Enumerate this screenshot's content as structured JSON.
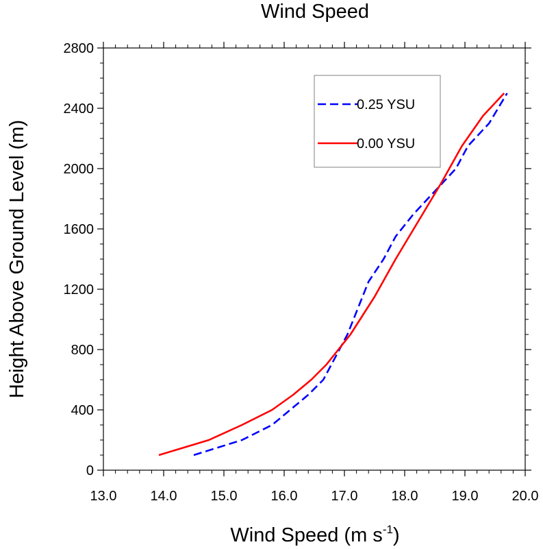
{
  "chart_data": {
    "type": "line",
    "title": "Wind Speed",
    "xlabel": "Wind Speed (m s",
    "xlabel_sup": "-1",
    "xlabel_close": ")",
    "ylabel": "Height Above Ground Level (m)",
    "xlim": [
      13.0,
      20.0
    ],
    "ylim": [
      0,
      2800
    ],
    "x_ticks": [
      13.0,
      14.0,
      15.0,
      16.0,
      17.0,
      18.0,
      19.0,
      20.0
    ],
    "x_tick_labels": [
      "13.0",
      "14.0",
      "15.0",
      "16.0",
      "17.0",
      "18.0",
      "19.0",
      "20.0"
    ],
    "y_ticks": [
      0,
      400,
      800,
      1200,
      1600,
      2000,
      2400,
      2800
    ],
    "y_tick_labels": [
      "0",
      "400",
      "800",
      "1200",
      "1600",
      "2000",
      "2400",
      "2800"
    ],
    "legend_position": "top-right",
    "grid": false,
    "series": [
      {
        "name": "0.25 YSU",
        "color": "#0000ff",
        "dash": "dashed",
        "points": [
          [
            14.5,
            100
          ],
          [
            15.3,
            200
          ],
          [
            15.8,
            300
          ],
          [
            16.1,
            400
          ],
          [
            16.4,
            500
          ],
          [
            16.65,
            600
          ],
          [
            16.85,
            750
          ],
          [
            17.05,
            900
          ],
          [
            17.2,
            1050
          ],
          [
            17.4,
            1250
          ],
          [
            17.65,
            1400
          ],
          [
            17.85,
            1550
          ],
          [
            18.15,
            1700
          ],
          [
            18.5,
            1850
          ],
          [
            18.85,
            2000
          ],
          [
            19.05,
            2150
          ],
          [
            19.4,
            2300
          ],
          [
            19.7,
            2500
          ]
        ]
      },
      {
        "name": "0.00 YSU",
        "color": "#ff0000",
        "dash": "solid",
        "points": [
          [
            13.92,
            100
          ],
          [
            14.75,
            200
          ],
          [
            15.3,
            300
          ],
          [
            15.8,
            400
          ],
          [
            16.15,
            500
          ],
          [
            16.45,
            600
          ],
          [
            16.7,
            700
          ],
          [
            16.9,
            800
          ],
          [
            17.1,
            900
          ],
          [
            17.5,
            1150
          ],
          [
            17.85,
            1400
          ],
          [
            18.3,
            1700
          ],
          [
            18.6,
            1900
          ],
          [
            18.95,
            2150
          ],
          [
            19.3,
            2350
          ],
          [
            19.65,
            2500
          ]
        ]
      }
    ]
  }
}
